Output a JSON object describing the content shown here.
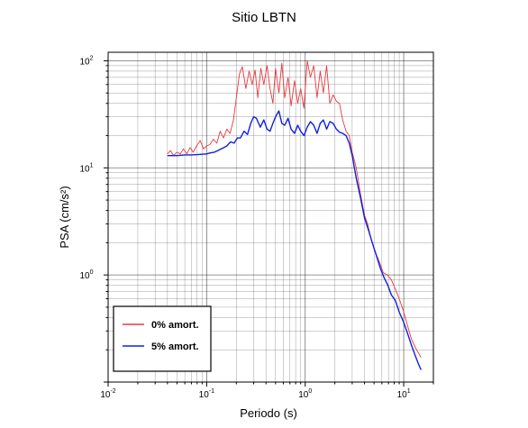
{
  "chart_data": {
    "type": "line",
    "title": "Sitio LBTN",
    "xlabel": "Periodo (s)",
    "ylabel": "PSA (cm/s²)",
    "xscale": "log",
    "yscale": "log",
    "xlim": [
      0.01,
      20
    ],
    "ylim": [
      0.1,
      120
    ],
    "grid": true,
    "legend_position": "bottom-left",
    "x_ticks": [
      {
        "base": "10",
        "exp": "-2",
        "value": 0.01
      },
      {
        "base": "10",
        "exp": "-1",
        "value": 0.1
      },
      {
        "base": "10",
        "exp": "0",
        "value": 1
      },
      {
        "base": "10",
        "exp": "1",
        "value": 10
      }
    ],
    "y_ticks": [
      {
        "base": "10",
        "exp": "0",
        "value": 1
      },
      {
        "base": "10",
        "exp": "1",
        "value": 10
      },
      {
        "base": "10",
        "exp": "2",
        "value": 100
      }
    ],
    "series": [
      {
        "name": "0% amort.",
        "color": "#e8383d",
        "x": [
          0.04,
          0.043,
          0.046,
          0.05,
          0.054,
          0.058,
          0.063,
          0.068,
          0.073,
          0.079,
          0.086,
          0.093,
          0.1,
          0.108,
          0.117,
          0.127,
          0.137,
          0.148,
          0.16,
          0.173,
          0.187,
          0.2,
          0.215,
          0.23,
          0.25,
          0.27,
          0.29,
          0.31,
          0.33,
          0.355,
          0.38,
          0.41,
          0.44,
          0.47,
          0.5,
          0.54,
          0.58,
          0.62,
          0.67,
          0.72,
          0.78,
          0.84,
          0.9,
          0.97,
          1.05,
          1.13,
          1.22,
          1.32,
          1.42,
          1.53,
          1.65,
          1.78,
          1.92,
          2.07,
          2.23,
          2.4,
          2.6,
          2.8,
          3.0,
          3.3,
          3.6,
          4.0,
          4.3,
          4.7,
          5.2,
          5.7,
          6.2,
          6.8,
          7.5,
          8.2,
          9.0,
          10.0,
          11.0,
          12.0,
          13.5,
          15.0
        ],
        "values": [
          13.5,
          14.5,
          13.0,
          14.0,
          13.5,
          15.0,
          13.5,
          15.5,
          14.0,
          16.0,
          18.0,
          15.0,
          16.0,
          16.5,
          18.5,
          17.0,
          22.0,
          19.0,
          23.0,
          21.0,
          28.0,
          45.0,
          75.0,
          88.0,
          55.0,
          80.0,
          60.0,
          82.0,
          45.0,
          85.0,
          60.0,
          90.0,
          55.0,
          40.0,
          85.0,
          50.0,
          95.0,
          45.0,
          70.0,
          38.0,
          65.0,
          40.0,
          55.0,
          36.0,
          100.0,
          70.0,
          90.0,
          45.0,
          80.0,
          50.0,
          90.0,
          40.0,
          48.0,
          42.0,
          40.0,
          28.0,
          22.0,
          20.0,
          14.0,
          10.0,
          6.0,
          3.6,
          3.0,
          2.1,
          1.6,
          1.3,
          1.05,
          1.0,
          0.9,
          0.74,
          0.6,
          0.45,
          0.33,
          0.25,
          0.2,
          0.17
        ]
      },
      {
        "name": "5% amort.",
        "color": "#1020e0",
        "x": [
          0.04,
          0.05,
          0.06,
          0.07,
          0.08,
          0.09,
          0.1,
          0.11,
          0.12,
          0.13,
          0.14,
          0.15,
          0.16,
          0.175,
          0.19,
          0.205,
          0.22,
          0.24,
          0.26,
          0.28,
          0.3,
          0.32,
          0.35,
          0.38,
          0.41,
          0.44,
          0.47,
          0.5,
          0.54,
          0.58,
          0.62,
          0.67,
          0.72,
          0.78,
          0.84,
          0.9,
          0.97,
          1.05,
          1.13,
          1.22,
          1.32,
          1.42,
          1.53,
          1.65,
          1.78,
          1.92,
          2.07,
          2.23,
          2.4,
          2.6,
          2.8,
          3.0,
          3.3,
          3.6,
          4.0,
          4.4,
          4.8,
          5.3,
          5.8,
          6.3,
          6.9,
          7.5,
          8.2,
          9.0,
          10.0,
          11.0,
          12.0,
          13.0,
          14.0,
          15.0
        ],
        "values": [
          13.0,
          13.0,
          13.2,
          13.2,
          13.3,
          13.4,
          13.5,
          13.8,
          14.0,
          14.5,
          15.0,
          15.5,
          16.0,
          17.5,
          17.0,
          19.0,
          19.0,
          22.0,
          20.5,
          26.0,
          30.0,
          29.0,
          24.0,
          28.0,
          23.0,
          22.0,
          26.0,
          30.0,
          34.0,
          26.0,
          25.0,
          29.0,
          23.0,
          21.0,
          25.0,
          22.0,
          20.0,
          24.0,
          27.0,
          25.0,
          21.0,
          26.0,
          28.0,
          23.0,
          27.0,
          26.0,
          23.0,
          21.5,
          21.0,
          20.0,
          17.0,
          13.0,
          8.0,
          5.5,
          3.4,
          2.6,
          2.0,
          1.5,
          1.15,
          0.95,
          0.8,
          0.65,
          0.58,
          0.45,
          0.36,
          0.28,
          0.22,
          0.18,
          0.15,
          0.13
        ]
      }
    ]
  }
}
